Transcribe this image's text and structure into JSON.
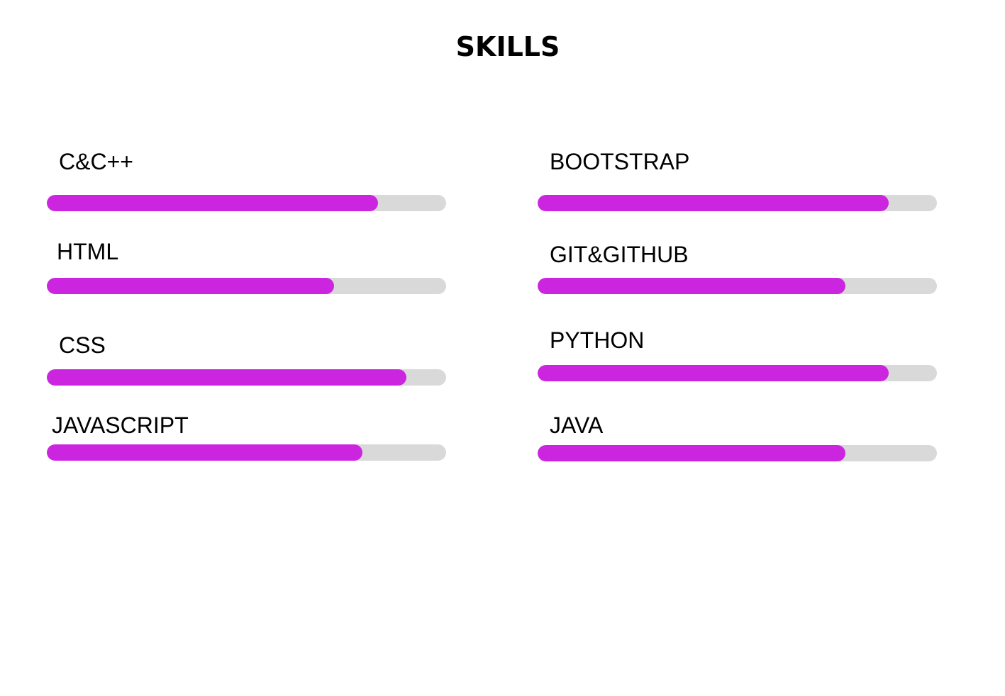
{
  "section": {
    "title": "SKILLS"
  },
  "colors": {
    "fill": "#cc25e0",
    "track": "#d9d9d9"
  },
  "skills": [
    {
      "label": "C&C++",
      "level": 0.83
    },
    {
      "label": "HTML",
      "level": 0.72
    },
    {
      "label": "CSS",
      "level": 0.9
    },
    {
      "label": "JAVASCRIPT",
      "level": 0.79
    },
    {
      "label": "BOOTSTRAP",
      "level": 0.88
    },
    {
      "label": "GIT&GITHUB",
      "level": 0.77
    },
    {
      "label": "PYTHON",
      "level": 0.88
    },
    {
      "label": "JAVA",
      "level": 0.77
    }
  ]
}
